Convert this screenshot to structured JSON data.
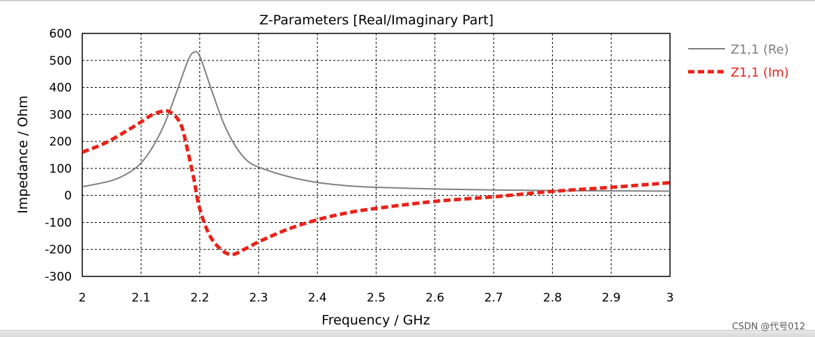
{
  "chart_data": {
    "type": "line",
    "title": "Z-Parameters [Real/Imaginary Part]",
    "xlabel": "Frequency / GHz",
    "ylabel": "Impedance / Ohm",
    "xlim": [
      2,
      3
    ],
    "ylim": [
      -300,
      600
    ],
    "xticks": [
      "2",
      "2.1",
      "2.2",
      "2.3",
      "2.4",
      "2.5",
      "2.6",
      "2.7",
      "2.8",
      "2.9",
      "3"
    ],
    "xtick_values": [
      2,
      2.1,
      2.2,
      2.3,
      2.4,
      2.5,
      2.6,
      2.7,
      2.8,
      2.9,
      3
    ],
    "yticks": [
      "600",
      "500",
      "400",
      "300",
      "200",
      "100",
      "0",
      "-100",
      "-200",
      "-300"
    ],
    "ytick_values": [
      600,
      500,
      400,
      300,
      200,
      100,
      0,
      -100,
      -200,
      -300
    ],
    "grid": true,
    "legend_position": "right",
    "series": [
      {
        "name": "Z1,1 (Re)",
        "color": "#7f7f7f",
        "style": "solid",
        "x": [
          2.0,
          2.05,
          2.08,
          2.1,
          2.12,
          2.14,
          2.16,
          2.18,
          2.19,
          2.2,
          2.22,
          2.24,
          2.26,
          2.28,
          2.3,
          2.35,
          2.4,
          2.45,
          2.5,
          2.6,
          2.7,
          2.8,
          2.9,
          3.0
        ],
        "y": [
          32,
          55,
          85,
          120,
          180,
          265,
          380,
          500,
          530,
          515,
          390,
          270,
          185,
          130,
          105,
          70,
          48,
          36,
          30,
          24,
          20,
          18,
          17,
          16
        ]
      },
      {
        "name": "Z1,1 (Im)",
        "color": "#e8231a",
        "style": "dashed",
        "x": [
          2.0,
          2.04,
          2.08,
          2.1,
          2.12,
          2.14,
          2.15,
          2.16,
          2.17,
          2.18,
          2.19,
          2.2,
          2.22,
          2.25,
          2.28,
          2.3,
          2.35,
          2.4,
          2.45,
          2.5,
          2.6,
          2.7,
          2.8,
          2.9,
          3.0
        ],
        "y": [
          160,
          195,
          245,
          272,
          300,
          313,
          308,
          290,
          250,
          160,
          60,
          -50,
          -160,
          -218,
          -195,
          -172,
          -125,
          -90,
          -65,
          -48,
          -22,
          -5,
          15,
          30,
          47
        ]
      }
    ]
  },
  "watermark": "CSDN @代号012"
}
